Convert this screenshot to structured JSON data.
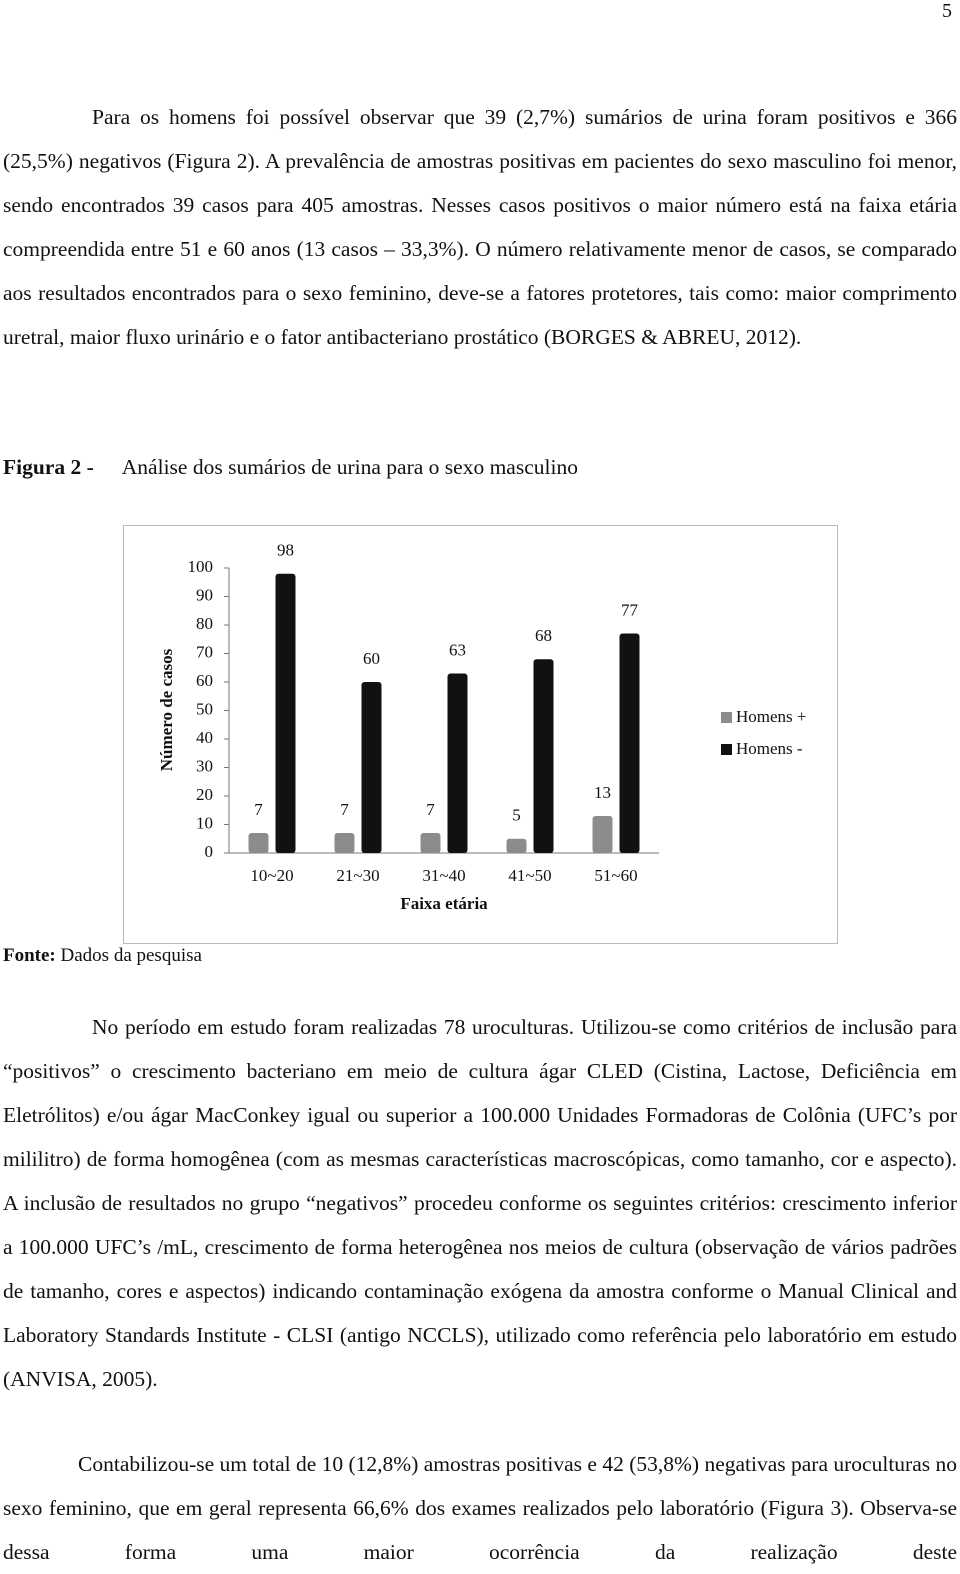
{
  "page_number": "5",
  "paragraphs_before": [
    "Para os homens foi possível observar que 39 (2,7%) sumários de urina foram positivos e 366 (25,5%) negativos (Figura 2). A prevalência de amostras positivas em pacientes do sexo masculino foi menor, sendo encontrados 39 casos para 405 amostras. Nesses casos positivos o maior número está na faixa etária compreendida entre 51 e 60 anos (13 casos – 33,3%). O número relativamente menor de casos, se comparado aos resultados encontrados para o sexo feminino, deve-se a fatores protetores, tais como: maior comprimento uretral, maior fluxo urinário e o fator antibacteriano prostático (BORGES & ABREU, 2012)."
  ],
  "figure": {
    "label": "Figura 2 -",
    "caption": "Análise dos sumários de urina para o sexo masculino",
    "source_label": "Fonte:",
    "source": "Dados da pesquisa"
  },
  "chart_data": {
    "type": "bar",
    "xlabel": "Faixa etária",
    "ylabel": "Número de casos",
    "categories": [
      "10~20",
      "21~30",
      "31~40",
      "41~50",
      "51~60"
    ],
    "series": [
      {
        "name": "Homens +",
        "color": "#8c8c8c",
        "values": [
          7,
          7,
          7,
          5,
          13
        ]
      },
      {
        "name": "Homens -",
        "color": "#111111",
        "values": [
          98,
          60,
          63,
          68,
          77
        ]
      }
    ],
    "ylim": [
      0,
      100
    ],
    "yticks": [
      0,
      10,
      20,
      30,
      40,
      50,
      60,
      70,
      80,
      90,
      100
    ],
    "legend": "right"
  },
  "paragraphs_after": [
    "No período em estudo foram realizadas 78 uroculturas. Utilizou-se como critérios de inclusão para “positivos” o crescimento bacteriano em meio de cultura ágar CLED (Cistina, Lactose, Deficiência em Eletrólitos) e/ou ágar MacConkey igual ou superior a 100.000 Unidades Formadoras de Colônia (UFC’s por mililitro) de forma homogênea (com as mesmas características macroscópicas, como tamanho, cor e aspecto). A inclusão de resultados no grupo “negativos” procedeu conforme os seguintes critérios: crescimento inferior a 100.000 UFC’s /mL, crescimento de forma heterogênea nos meios de cultura (observação de vários padrões de tamanho, cores e aspectos) indicando contaminação exógena da amostra conforme o Manual Clinical and Laboratory Standards Institute - CLSI (antigo NCCLS), utilizado como referência pelo laboratório em estudo (ANVISA, 2005).",
    "Contabilizou-se um total de 10 (12,8%) amostras positivas e 42 (53,8%) negativas para uroculturas no sexo feminino, que em geral representa 66,6% dos exames realizados pelo laboratório (Figura 3). Observa-se dessa forma uma maior ocorrência da realização deste"
  ]
}
